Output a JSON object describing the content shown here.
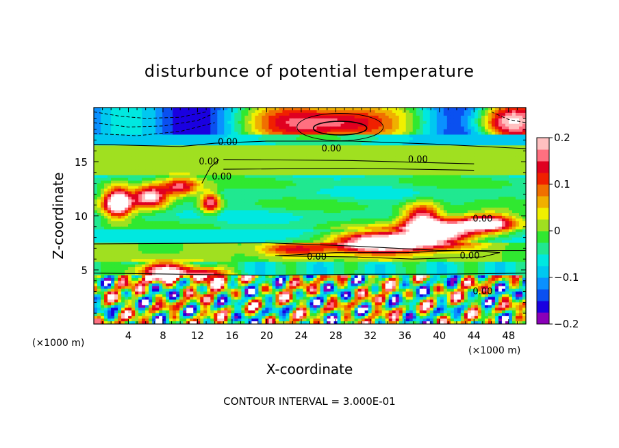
{
  "chart_data": {
    "type": "heatmap",
    "title": "disturbunce of potential temperature",
    "xlabel": "X-coordinate",
    "ylabel": "Z-coordinate",
    "x_unit": "(×1000 m)",
    "z_unit": "(×1000 m)",
    "xlim": [
      0,
      50
    ],
    "ylim": [
      0,
      20
    ],
    "x_ticks": [
      4,
      8,
      12,
      16,
      20,
      24,
      28,
      32,
      36,
      40,
      44,
      48
    ],
    "y_ticks": [
      5,
      10,
      15
    ],
    "colorbar": {
      "min": -0.2,
      "max": 0.2,
      "tick_values": [
        0.2,
        0.1,
        0,
        -0.1,
        -0.2
      ],
      "tick_labels": [
        "0.2",
        "0.1",
        "0",
        "−0.1",
        "−0.2"
      ],
      "colors": [
        "#8a00b8",
        "#1a00e0",
        "#0a50f0",
        "#0a90ff",
        "#00c8f0",
        "#00e8e0",
        "#20e890",
        "#30e830",
        "#a0e020",
        "#f0f000",
        "#f0b000",
        "#f07000",
        "#f02000",
        "#e00020",
        "#ff7080",
        "#ffc0c0"
      ]
    },
    "contour_labels": [
      {
        "x": 15.5,
        "z": 16.8,
        "text": "0.00"
      },
      {
        "x": 27.5,
        "z": 16.2,
        "text": "0.00"
      },
      {
        "x": 37.5,
        "z": 15.2,
        "text": "0.00"
      },
      {
        "x": 13.3,
        "z": 15.0,
        "text": "0.00"
      },
      {
        "x": 14.8,
        "z": 13.6,
        "text": "0.00"
      },
      {
        "x": 45.0,
        "z": 9.7,
        "text": "0.00"
      },
      {
        "x": 25.8,
        "z": 6.2,
        "text": "0.00"
      },
      {
        "x": 43.5,
        "z": 6.3,
        "text": "0.00"
      },
      {
        "x": 45.0,
        "z": 3.0,
        "text": "0.00"
      }
    ],
    "contour_interval_text": "CONTOUR INTERVAL = 3.000E-01"
  }
}
